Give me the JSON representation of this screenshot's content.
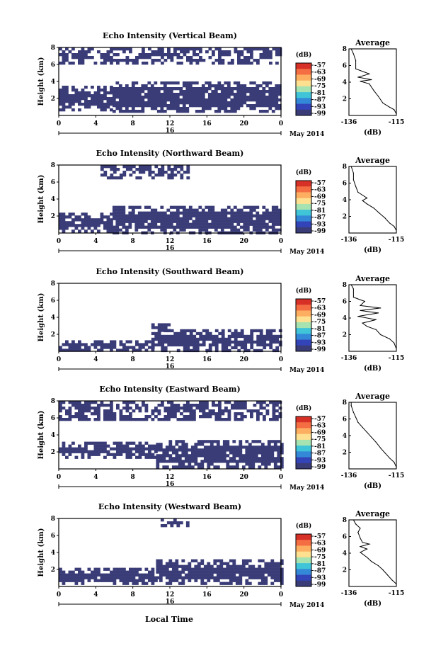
{
  "figure": {
    "xlabel": "Local Time",
    "main_yticks": [
      "2",
      "4",
      "6",
      "8"
    ],
    "profile_yticks": [
      "2",
      "4",
      "6",
      "8"
    ]
  },
  "chart_data": [
    {
      "type": "heatmap",
      "title": "Echo Intensity (Vertical Beam)",
      "ylabel": "Height (km)",
      "xticks": [
        "0",
        "4",
        "8",
        "12",
        "16",
        "20",
        "0"
      ],
      "date_marker": "16",
      "date_label": "May 2014",
      "colorbar": {
        "unit": "(dB)",
        "ticks": [
          "-57",
          "-63",
          "-69",
          "-75",
          "-81",
          "-87",
          "-93",
          "-99"
        ]
      },
      "echo_color": "#3a3c78",
      "bands": [
        {
          "x": [
            0,
            5.8
          ],
          "y": [
            0.6,
            3.5
          ]
        },
        {
          "x": [
            5.8,
            24
          ],
          "y": [
            0.5,
            4.0
          ]
        },
        {
          "x": [
            0,
            24
          ],
          "y": [
            6.2,
            8.0
          ]
        }
      ],
      "profile": {
        "title": "Average",
        "xlabel": "(dB)",
        "xticks": [
          "-136",
          "-115"
        ],
        "xlim": [
          -136,
          -115
        ],
        "ylim": [
          0,
          8
        ],
        "points": [
          [
            -115,
            0.2
          ],
          [
            -116,
            0.7
          ],
          [
            -118,
            1.0
          ],
          [
            -121,
            1.5
          ],
          [
            -123,
            2.3
          ],
          [
            -125,
            3.0
          ],
          [
            -127,
            3.8
          ],
          [
            -131,
            4.1
          ],
          [
            -126,
            4.3
          ],
          [
            -132,
            4.6
          ],
          [
            -127,
            5.0
          ],
          [
            -133,
            5.6
          ],
          [
            -133,
            6.6
          ],
          [
            -134,
            7.4
          ],
          [
            -135,
            8.0
          ]
        ]
      }
    },
    {
      "type": "heatmap",
      "title": "Echo Intensity (Northward Beam)",
      "ylabel": "Height (km)",
      "xticks": [
        "0",
        "4",
        "8",
        "12",
        "16",
        "20",
        "0"
      ],
      "date_marker": "16",
      "date_label": "May 2014",
      "colorbar": {
        "unit": "(dB)",
        "ticks": [
          "-57",
          "-63",
          "-69",
          "-75",
          "-81",
          "-87",
          "-93",
          "-99"
        ]
      },
      "echo_color": "#3a3c78",
      "bands": [
        {
          "x": [
            0,
            5.8
          ],
          "y": [
            0.1,
            2.4
          ]
        },
        {
          "x": [
            5.8,
            24
          ],
          "y": [
            0.1,
            3.2
          ]
        },
        {
          "x": [
            4.5,
            14
          ],
          "y": [
            6.6,
            8.0
          ]
        }
      ],
      "profile": {
        "title": "Average",
        "xlabel": "(dB)",
        "xticks": [
          "-136",
          "-115"
        ],
        "xlim": [
          -136,
          -115
        ],
        "ylim": [
          0,
          8
        ],
        "points": [
          [
            -115,
            0.3
          ],
          [
            -116,
            0.8
          ],
          [
            -118,
            1.2
          ],
          [
            -120,
            1.8
          ],
          [
            -123,
            2.5
          ],
          [
            -125,
            3.0
          ],
          [
            -128,
            3.5
          ],
          [
            -130,
            3.9
          ],
          [
            -128,
            4.2
          ],
          [
            -132,
            4.9
          ],
          [
            -133,
            5.6
          ],
          [
            -134,
            6.4
          ],
          [
            -134,
            7.2
          ],
          [
            -135,
            8.0
          ]
        ]
      }
    },
    {
      "type": "heatmap",
      "title": "Echo Intensity (Southward Beam)",
      "ylabel": "Height (km)",
      "xticks": [
        "0",
        "4",
        "8",
        "12",
        "16",
        "20",
        "0"
      ],
      "date_marker": "16",
      "date_label": "May 2014",
      "colorbar": {
        "unit": "(dB)",
        "ticks": [
          "-57",
          "-63",
          "-69",
          "-75",
          "-81",
          "-87",
          "-93",
          "-99"
        ]
      },
      "echo_color": "#3a3c78",
      "bands": [
        {
          "x": [
            0,
            10
          ],
          "y": [
            0.2,
            1.3
          ]
        },
        {
          "x": [
            10,
            24
          ],
          "y": [
            0.2,
            2.6
          ]
        },
        {
          "x": [
            10,
            12
          ],
          "y": [
            2.6,
            3.3
          ]
        }
      ],
      "profile": {
        "title": "Average",
        "xlabel": "(dB)",
        "xticks": [
          "-136",
          "-115"
        ],
        "xlim": [
          -136,
          -115
        ],
        "ylim": [
          0,
          8
        ],
        "points": [
          [
            -115,
            0.3
          ],
          [
            -116,
            1.0
          ],
          [
            -118,
            1.5
          ],
          [
            -122,
            2.0
          ],
          [
            -124,
            2.6
          ],
          [
            -128,
            3.0
          ],
          [
            -130,
            3.4
          ],
          [
            -124,
            3.8
          ],
          [
            -132,
            4.2
          ],
          [
            -123,
            4.6
          ],
          [
            -131,
            4.9
          ],
          [
            -122,
            5.2
          ],
          [
            -131,
            5.5
          ],
          [
            -129,
            6.0
          ],
          [
            -134,
            6.5
          ],
          [
            -134,
            7.5
          ],
          [
            -135,
            8.0
          ]
        ]
      }
    },
    {
      "type": "heatmap",
      "title": "Echo Intensity (Eastward Beam)",
      "ylabel": "Height (km)",
      "xticks": [
        "0",
        "4",
        "8",
        "12",
        "16",
        "20",
        "0"
      ],
      "date_marker": "16",
      "date_label": "May 2014",
      "colorbar": {
        "unit": "(dB)",
        "ticks": [
          "-57",
          "-63",
          "-69",
          "-75",
          "-81",
          "-87",
          "-93",
          "-99"
        ]
      },
      "echo_color": "#3a3c78",
      "bands": [
        {
          "x": [
            0,
            10.5
          ],
          "y": [
            1.4,
            3.2
          ]
        },
        {
          "x": [
            10.5,
            24
          ],
          "y": [
            0.2,
            3.4
          ]
        },
        {
          "x": [
            0,
            24
          ],
          "y": [
            5.8,
            8.0
          ]
        }
      ],
      "profile": {
        "title": "Average",
        "xlabel": "(dB)",
        "xticks": [
          "-136",
          "-115"
        ],
        "xlim": [
          -136,
          -115
        ],
        "ylim": [
          0,
          8
        ],
        "points": [
          [
            -115,
            0.2
          ],
          [
            -116,
            0.8
          ],
          [
            -118,
            1.3
          ],
          [
            -120,
            1.9
          ],
          [
            -122,
            2.5
          ],
          [
            -124,
            3.2
          ],
          [
            -126,
            3.8
          ],
          [
            -128,
            4.4
          ],
          [
            -130,
            5.0
          ],
          [
            -132,
            5.6
          ],
          [
            -133,
            6.2
          ],
          [
            -134,
            6.8
          ],
          [
            -135,
            7.6
          ],
          [
            -135,
            8.0
          ]
        ]
      }
    },
    {
      "type": "heatmap",
      "title": "Echo Intensity (Westward Beam)",
      "ylabel": "Height (km)",
      "xticks": [
        "0",
        "4",
        "8",
        "12",
        "16",
        "20",
        "0"
      ],
      "date_marker": "16",
      "date_label": "May 2014",
      "colorbar": {
        "unit": "(dB)",
        "ticks": [
          "-57",
          "-63",
          "-69",
          "-75",
          "-81",
          "-87",
          "-93",
          "-99"
        ]
      },
      "echo_color": "#3a3c78",
      "bands": [
        {
          "x": [
            0,
            10.5
          ],
          "y": [
            0.2,
            2.2
          ]
        },
        {
          "x": [
            10.5,
            24
          ],
          "y": [
            0.3,
            3.2
          ]
        },
        {
          "x": [
            11,
            14
          ],
          "y": [
            7.0,
            8.0
          ]
        }
      ],
      "profile": {
        "title": "Average",
        "xlabel": "(dB)",
        "xticks": [
          "-136",
          "-115"
        ],
        "xlim": [
          -136,
          -115
        ],
        "ylim": [
          0,
          8
        ],
        "points": [
          [
            -115,
            0.3
          ],
          [
            -117,
            0.8
          ],
          [
            -119,
            1.4
          ],
          [
            -121,
            2.0
          ],
          [
            -123,
            2.5
          ],
          [
            -126,
            3.0
          ],
          [
            -128,
            3.5
          ],
          [
            -131,
            4.1
          ],
          [
            -128,
            4.5
          ],
          [
            -131,
            4.8
          ],
          [
            -127,
            5.1
          ],
          [
            -130,
            5.3
          ],
          [
            -131,
            5.8
          ],
          [
            -132,
            6.5
          ],
          [
            -131,
            7.0
          ],
          [
            -133,
            7.5
          ],
          [
            -134,
            8.0
          ]
        ]
      }
    }
  ]
}
